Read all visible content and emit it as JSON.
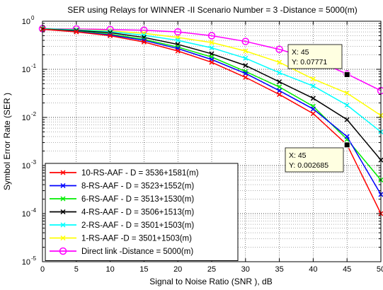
{
  "chart_data": {
    "type": "line",
    "title": "SER using Relays for WINNER -II  Scenario Number = 3 -Distance = 5000(m)",
    "xlabel": "Signal to Noise Ratio (SNR ), dB",
    "ylabel": "Symbol Error Rate (SER )",
    "xlim": [
      0,
      50
    ],
    "ylim": [
      1e-05,
      1
    ],
    "yscale": "log",
    "grid": true,
    "legend_position": "bottom-left",
    "x_ticks": [
      "0",
      "5",
      "10",
      "15",
      "20",
      "25",
      "30",
      "35",
      "40",
      "45",
      "50"
    ],
    "y_tick_exponents": [
      "-5",
      "-4",
      "-3",
      "-2",
      "-1",
      "0"
    ],
    "x": [
      0,
      5,
      10,
      15,
      20,
      25,
      30,
      35,
      40,
      45,
      50
    ],
    "series": [
      {
        "name": "10-RS-AAF - D = 3536+1581(m)",
        "color": "#ff0000",
        "marker": "x",
        "values": [
          0.68,
          0.6,
          0.5,
          0.37,
          0.24,
          0.14,
          0.068,
          0.03,
          0.012,
          0.0027,
          0.0001
        ]
      },
      {
        "name": "8-RS-AAF - D = 3523+1552(m)",
        "color": "#0000ff",
        "marker": "x",
        "values": [
          0.68,
          0.61,
          0.52,
          0.4,
          0.27,
          0.16,
          0.082,
          0.036,
          0.015,
          0.004,
          0.00025
        ]
      },
      {
        "name": "6-RS-AAF - D = 3513+1530(m)",
        "color": "#00ee00",
        "marker": "x",
        "values": [
          0.69,
          0.62,
          0.54,
          0.42,
          0.29,
          0.18,
          0.09,
          0.043,
          0.017,
          0.0035,
          0.0005
        ]
      },
      {
        "name": "4-RS-AAF - D = 3506+1513(m)",
        "color": "#000000",
        "marker": "x",
        "values": [
          0.69,
          0.64,
          0.58,
          0.46,
          0.33,
          0.21,
          0.12,
          0.055,
          0.025,
          0.009,
          0.0013
        ]
      },
      {
        "name": "2-RS-AAF - D = 3501+1503(m)",
        "color": "#00ffff",
        "marker": "x",
        "values": [
          0.7,
          0.66,
          0.61,
          0.51,
          0.4,
          0.28,
          0.17,
          0.085,
          0.045,
          0.018,
          0.005
        ]
      },
      {
        "name": "1-RS-AAF -D = 3501+1503(m)",
        "color": "#ffff00",
        "marker": "x",
        "values": [
          0.7,
          0.67,
          0.63,
          0.56,
          0.46,
          0.36,
          0.24,
          0.14,
          0.063,
          0.032,
          0.011
        ]
      },
      {
        "name": "Direct link -Distance = 5000(m)",
        "color": "#ff00ff",
        "marker": "o",
        "values": [
          0.7,
          0.69,
          0.67,
          0.65,
          0.6,
          0.5,
          0.38,
          0.26,
          0.16,
          0.08,
          0.036
        ]
      }
    ],
    "annotations": [
      {
        "x_text": "X: 45",
        "y_text": "Y: 0.07771",
        "x": 45,
        "y": 0.07771
      },
      {
        "x_text": "X: 45",
        "y_text": "Y: 0.002685",
        "x": 45,
        "y": 0.002685
      }
    ]
  }
}
